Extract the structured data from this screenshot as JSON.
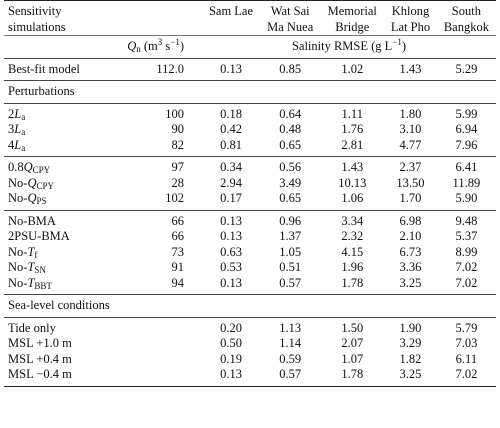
{
  "header": {
    "col0": "Sensitivity simulations",
    "columns": [
      "Sam Lae",
      "Wat Sai Ma Nuea",
      "Memorial Bridge",
      "Khlong Lat Pho",
      "South Bangkok"
    ],
    "columns_line1": [
      "Sam Lae",
      "Wat Sai",
      "Memorial",
      "Khlong",
      "South"
    ],
    "columns_line2": [
      "",
      "Ma Nuea",
      "Bridge",
      "Lat Pho",
      "Bangkok"
    ],
    "qn_label": "Q",
    "qn_sub": "n",
    "qn_unit": "(m",
    "qn_unit_sup1": "3",
    "qn_unit_mid": " s",
    "qn_unit_sup2": "−1",
    "qn_unit_end": ")",
    "rmse_label": "Salinity RMSE (g L",
    "rmse_sup": "−1",
    "rmse_end": ")"
  },
  "bestfit": {
    "label": "Best-fit model",
    "q": "112.0",
    "values": [
      "0.13",
      "0.85",
      "1.02",
      "1.43",
      "5.29"
    ]
  },
  "perturbations_title": "Perturbations",
  "groupA": [
    {
      "pre": "2",
      "sym": "L",
      "sub": "a",
      "post": "",
      "q": "100",
      "values": [
        "0.18",
        "0.64",
        "1.11",
        "1.80",
        "5.99"
      ]
    },
    {
      "pre": "3",
      "sym": "L",
      "sub": "a",
      "post": "",
      "q": "90",
      "values": [
        "0.42",
        "0.48",
        "1.76",
        "3.10",
        "6.94"
      ]
    },
    {
      "pre": "4",
      "sym": "L",
      "sub": "a",
      "post": "",
      "q": "82",
      "values": [
        "0.81",
        "0.65",
        "2.81",
        "4.77",
        "7.96"
      ]
    }
  ],
  "groupB": [
    {
      "pre": "0.8",
      "sym": "Q",
      "sub": "CPY",
      "post": "",
      "q": "97",
      "values": [
        "0.34",
        "0.56",
        "1.43",
        "2.37",
        "6.41"
      ]
    },
    {
      "pre": "No-",
      "sym": "Q",
      "sub": "CPY",
      "post": "",
      "q": "28",
      "values": [
        "2.94",
        "3.49",
        "10.13",
        "13.50",
        "11.89"
      ]
    },
    {
      "pre": "No-",
      "sym": "Q",
      "sub": "PS",
      "post": "",
      "q": "102",
      "values": [
        "0.17",
        "0.65",
        "1.06",
        "1.70",
        "5.90"
      ]
    }
  ],
  "groupC": [
    {
      "pre": "No-BMA",
      "sym": "",
      "sub": "",
      "post": "",
      "q": "66",
      "values": [
        "0.13",
        "0.96",
        "3.34",
        "6.98",
        "9.48"
      ]
    },
    {
      "pre": "2PSU-BMA",
      "sym": "",
      "sub": "",
      "post": "",
      "q": "66",
      "values": [
        "0.13",
        "1.37",
        "2.32",
        "2.10",
        "5.37"
      ]
    },
    {
      "pre": "No-",
      "sym": "T",
      "sub": "f",
      "post": "",
      "q": "73",
      "values": [
        "0.63",
        "1.05",
        "4.15",
        "6.73",
        "8.99"
      ]
    },
    {
      "pre": "No-",
      "sym": "T",
      "sub": "SN",
      "post": "",
      "q": "91",
      "values": [
        "0.53",
        "0.51",
        "1.96",
        "3.36",
        "7.02"
      ]
    },
    {
      "pre": "No-",
      "sym": "T",
      "sub": "BBT",
      "post": "",
      "q": "94",
      "values": [
        "0.13",
        "0.57",
        "1.78",
        "3.25",
        "7.02"
      ]
    }
  ],
  "sealevel_title": "Sea-level conditions",
  "groupD": [
    {
      "label": "Tide only",
      "q": "",
      "values": [
        "0.20",
        "1.13",
        "1.50",
        "1.90",
        "5.79"
      ]
    },
    {
      "label": "MSL +1.0 m",
      "q": "",
      "values": [
        "0.50",
        "1.14",
        "2.07",
        "3.29",
        "7.03"
      ]
    },
    {
      "label": "MSL +0.4 m",
      "q": "",
      "values": [
        "0.19",
        "0.59",
        "1.07",
        "1.82",
        "6.11"
      ]
    },
    {
      "label": "MSL −0.4 m",
      "q": "",
      "values": [
        "0.13",
        "0.57",
        "1.78",
        "3.25",
        "7.02"
      ]
    }
  ]
}
